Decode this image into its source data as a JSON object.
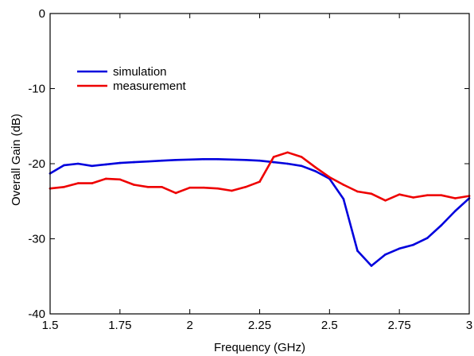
{
  "chart_data": {
    "type": "line",
    "title": "",
    "xlabel": "Frequency (GHz)",
    "ylabel": "Overall Gain (dB)",
    "xlim": [
      1.5,
      3
    ],
    "ylim": [
      -40,
      0
    ],
    "xticks": [
      1.5,
      1.75,
      2,
      2.25,
      2.5,
      2.75,
      3
    ],
    "xtick_labels": [
      "1.5",
      "1.75",
      "2",
      "2.25",
      "2.5",
      "2.75",
      "3"
    ],
    "yticks": [
      -40,
      -30,
      -20,
      -10,
      0
    ],
    "ytick_labels": [
      "-40",
      "-30",
      "-20",
      "-10",
      "0"
    ],
    "grid": false,
    "legend_position": "upper-left",
    "series": [
      {
        "name": "simulation",
        "color": "#0000dd",
        "x": [
          1.5,
          1.55,
          1.6,
          1.65,
          1.7,
          1.75,
          1.8,
          1.85,
          1.9,
          1.95,
          2.0,
          2.05,
          2.1,
          2.15,
          2.2,
          2.25,
          2.3,
          2.35,
          2.4,
          2.45,
          2.5,
          2.55,
          2.6,
          2.65,
          2.7,
          2.75,
          2.8,
          2.85,
          2.9,
          2.95,
          3.0
        ],
        "y": [
          -21.3,
          -20.2,
          -20.0,
          -20.3,
          -20.1,
          -19.9,
          -19.8,
          -19.7,
          -19.6,
          -19.5,
          -19.45,
          -19.4,
          -19.4,
          -19.45,
          -19.5,
          -19.6,
          -19.8,
          -20.0,
          -20.3,
          -21.0,
          -22.0,
          -24.7,
          -31.6,
          -33.6,
          -32.1,
          -31.3,
          -30.8,
          -29.9,
          -28.2,
          -26.3,
          -24.6
        ]
      },
      {
        "name": "measurement",
        "color": "#ee0000",
        "x": [
          1.5,
          1.55,
          1.6,
          1.65,
          1.7,
          1.75,
          1.8,
          1.85,
          1.9,
          1.95,
          2.0,
          2.05,
          2.1,
          2.15,
          2.2,
          2.25,
          2.3,
          2.35,
          2.4,
          2.45,
          2.5,
          2.55,
          2.6,
          2.65,
          2.7,
          2.75,
          2.8,
          2.85,
          2.9,
          2.95,
          3.0
        ],
        "y": [
          -23.3,
          -23.1,
          -22.6,
          -22.6,
          -22.0,
          -22.1,
          -22.8,
          -23.1,
          -23.1,
          -23.9,
          -23.2,
          -23.2,
          -23.3,
          -23.6,
          -23.1,
          -22.4,
          -19.1,
          -18.5,
          -19.1,
          -20.5,
          -21.8,
          -22.8,
          -23.7,
          -24.0,
          -24.9,
          -24.1,
          -24.5,
          -24.2,
          -24.2,
          -24.6,
          -24.3
        ]
      }
    ]
  }
}
